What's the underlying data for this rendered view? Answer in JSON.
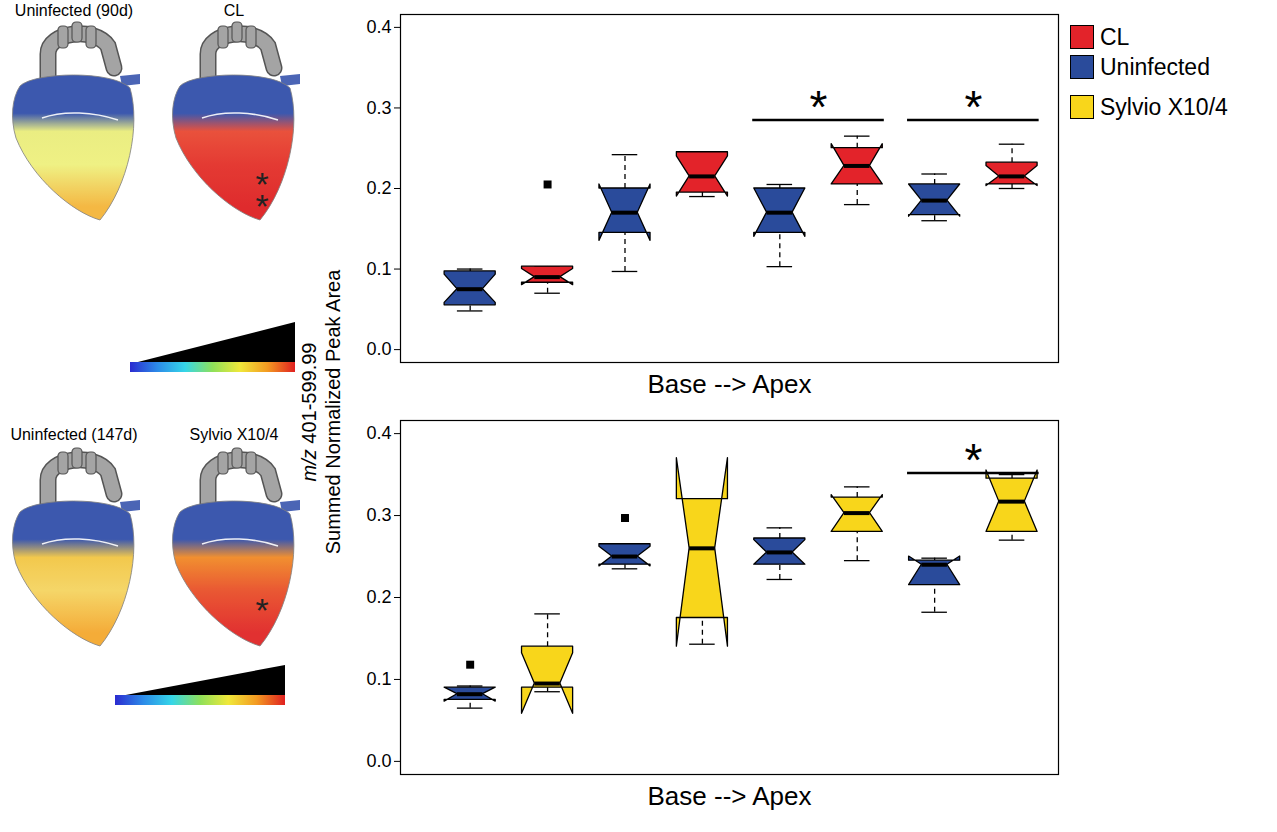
{
  "chart_data": [
    {
      "type": "box",
      "xlabel": "Base --> Apex",
      "categories": [
        null,
        null,
        null,
        null
      ],
      "ylim": [
        -0.016,
        0.416
      ],
      "yticks": [
        {
          "value": 0,
          "label": "0.0"
        },
        0.1,
        0.2,
        0.3,
        0.4
      ],
      "series": [
        {
          "name": "Uninfected",
          "color": "#2a4b9b",
          "boxes": [
            {
              "min": 0.048,
              "q1": 0.055,
              "median": 0.075,
              "q3": 0.097,
              "max": 0.1,
              "notch": [
                0.058,
                0.093
              ],
              "outliers": []
            },
            {
              "min": 0.097,
              "q1": 0.145,
              "median": 0.17,
              "q3": 0.2,
              "max": 0.242,
              "notch": [
                0.135,
                0.205
              ],
              "outliers": []
            },
            {
              "min": 0.103,
              "q1": 0.145,
              "median": 0.17,
              "q3": 0.2,
              "max": 0.205,
              "notch": [
                0.14,
                0.2
              ],
              "outliers": []
            },
            {
              "min": 0.16,
              "q1": 0.167,
              "median": 0.185,
              "q3": 0.205,
              "max": 0.218,
              "notch": [
                0.165,
                0.205
              ],
              "outliers": []
            }
          ]
        },
        {
          "name": "CL",
          "color": "#e3232a",
          "boxes": [
            {
              "min": 0.07,
              "q1": 0.083,
              "median": 0.09,
              "q3": 0.103,
              "max": 0.103,
              "notch": [
                0.08,
                0.1
              ],
              "outliers": [
                0.205
              ]
            },
            {
              "min": 0.19,
              "q1": 0.195,
              "median": 0.215,
              "q3": 0.245,
              "max": 0.245,
              "notch": [
                0.19,
                0.24
              ],
              "outliers": []
            },
            {
              "min": 0.18,
              "q1": 0.205,
              "median": 0.228,
              "q3": 0.25,
              "max": 0.265,
              "notch": [
                0.205,
                0.255
              ],
              "outliers": []
            },
            {
              "min": 0.2,
              "q1": 0.205,
              "median": 0.215,
              "q3": 0.232,
              "max": 0.255,
              "notch": [
                0.203,
                0.228
              ],
              "outliers": []
            }
          ]
        }
      ],
      "significance": [
        {
          "index": 2,
          "y": 0.285,
          "label": "*"
        },
        {
          "index": 3,
          "y": 0.285,
          "label": "*"
        }
      ]
    },
    {
      "type": "box",
      "xlabel": "Base --> Apex",
      "categories": [
        null,
        null,
        null,
        null
      ],
      "ylim": [
        -0.016,
        0.416
      ],
      "yticks": [
        {
          "value": 0,
          "label": "0.0"
        },
        0.1,
        0.2,
        0.3,
        0.4
      ],
      "series": [
        {
          "name": "Uninfected",
          "color": "#2a4b9b",
          "boxes": [
            {
              "min": 0.065,
              "q1": 0.075,
              "median": 0.082,
              "q3": 0.09,
              "max": 0.092,
              "notch": [
                0.073,
                0.09
              ],
              "outliers": [
                0.118
              ]
            },
            {
              "min": 0.235,
              "q1": 0.24,
              "median": 0.25,
              "q3": 0.265,
              "max": 0.265,
              "notch": [
                0.238,
                0.262
              ],
              "outliers": [
                0.297
              ]
            },
            {
              "min": 0.222,
              "q1": 0.24,
              "median": 0.255,
              "q3": 0.272,
              "max": 0.285,
              "notch": [
                0.24,
                0.27
              ],
              "outliers": []
            },
            {
              "min": 0.182,
              "q1": 0.215,
              "median": 0.24,
              "q3": 0.245,
              "max": 0.248,
              "notch": [
                0.215,
                0.25
              ],
              "outliers": []
            }
          ]
        },
        {
          "name": "Sylvio X10/4",
          "color": "#f8d61b",
          "boxes": [
            {
              "min": 0.085,
              "q1": 0.09,
              "median": 0.095,
              "q3": 0.14,
              "max": 0.18,
              "notch": [
                0.058,
                0.132
              ],
              "outliers": []
            },
            {
              "min": 0.143,
              "q1": 0.175,
              "median": 0.26,
              "q3": 0.32,
              "max": 0.32,
              "notch": [
                0.14,
                0.37
              ],
              "outliers": []
            },
            {
              "min": 0.245,
              "q1": 0.28,
              "median": 0.303,
              "q3": 0.322,
              "max": 0.335,
              "notch": [
                0.28,
                0.325
              ],
              "outliers": []
            },
            {
              "min": 0.27,
              "q1": 0.28,
              "median": 0.317,
              "q3": 0.345,
              "max": 0.35,
              "notch": [
                0.28,
                0.355
              ],
              "outliers": []
            }
          ]
        }
      ],
      "significance": [
        {
          "index": 3,
          "y": 0.352,
          "label": "*"
        }
      ]
    }
  ],
  "shared_y_label": [
    "m/z 401-599.99",
    "Summed Normalized Peak Area"
  ],
  "legend": "right",
  "legend_entries": [
    {
      "name": "CL",
      "color": "#e3232a"
    },
    {
      "name": "Uninfected",
      "color": "#2a4b9b"
    },
    {
      "name": "Sylvio X10/4",
      "color": "#f8d61b"
    }
  ],
  "hearts": [
    {
      "label": "Uninfected (90d)",
      "colors": [
        "#2c4aa8",
        "#e9ec78",
        "#eef07a",
        "#f3b234"
      ]
    },
    {
      "label": "CL",
      "colors": [
        "#2c4aa8",
        "#e8432c",
        "#e22a22",
        "#dd1a1c"
      ],
      "annotation": "**"
    },
    {
      "label": "Uninfected (147d)",
      "colors": [
        "#2c4aa8",
        "#f1c43e",
        "#f5d35c",
        "#f4a528"
      ]
    },
    {
      "label": "Sylvio X10/4",
      "colors": [
        "#2c4aa8",
        "#f0861f",
        "#e84a22",
        "#df2020"
      ],
      "annotation": "*"
    }
  ]
}
